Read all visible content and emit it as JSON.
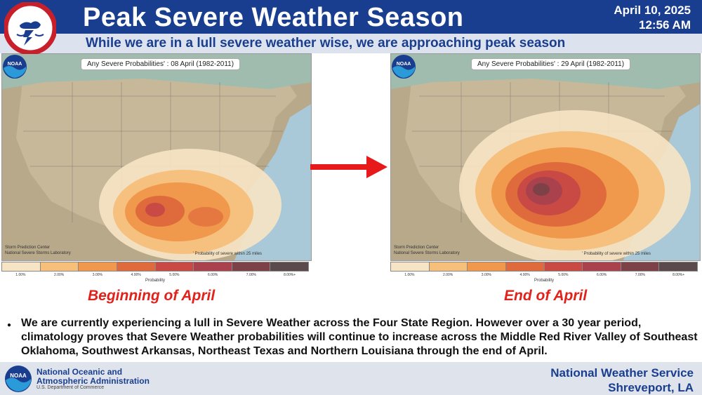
{
  "header": {
    "title": "Peak Severe Weather Season",
    "date": "April 10, 2025",
    "time": "12:56 AM",
    "subtitle": "While we are in a lull severe weather wise, we are approaching peak season",
    "logo_text": "NATIONAL WEATHER SERVICE"
  },
  "maps": [
    {
      "label": "Any Severe Probabilities' : 08 April (1982-2011)",
      "caption": "Beginning of April",
      "credit_line1": "Storm Prediction Center",
      "credit_line2": "National Severe Storms Laboratory",
      "note": "' Probability of severe within 25 miles"
    },
    {
      "label": "Any Severe Probabilities' : 29 April (1982-2011)",
      "caption": "End of April",
      "credit_line1": "Storm Prediction Center",
      "credit_line2": "National Severe Storms Laboratory",
      "note": "' Probability of severe within 25 miles"
    }
  ],
  "legend": {
    "title": "Probability",
    "ticks": [
      "1.00%",
      "2.00%",
      "3.00%",
      "4.00%",
      "5.00%",
      "6.00%",
      "7.00%",
      "8.00%+"
    ],
    "colors": [
      "#f7e4c4",
      "#f6bf7a",
      "#f0984c",
      "#df6b3c",
      "#c94a45",
      "#a9424d",
      "#7d4148",
      "#5a4a4c"
    ]
  },
  "bullet": "We are currently experiencing a lull in Severe Weather across the Four State Region.  However over a 30 year period, climatology proves that Severe Weather probabilities will continue to increase across the Middle Red River Valley of Southeast Oklahoma, Southwest Arkansas, Northeast Texas and Northern Louisiana through the end of April.",
  "footer": {
    "agency_line1": "National Oceanic and",
    "agency_line2": "Atmospheric Administration",
    "department": "U.S. Department of Commerce",
    "office_line1": "National Weather Service",
    "office_line2": "Shreveport, LA"
  },
  "colors": {
    "nws_blue": "#1a3e8f",
    "caption_red": "#e0221b",
    "arrow_red": "#e8191b"
  },
  "icons": [
    "nws-logo-icon",
    "noaa-logo-icon",
    "right-arrow-icon"
  ]
}
